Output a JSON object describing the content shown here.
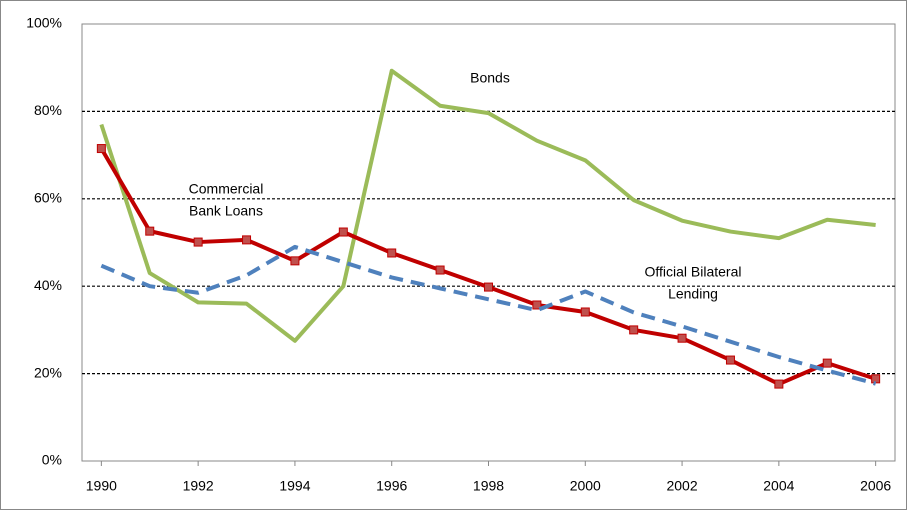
{
  "chart_data": {
    "type": "line",
    "x": [
      1990,
      1991,
      1992,
      1993,
      1994,
      1995,
      1996,
      1997,
      1998,
      1999,
      2000,
      2001,
      2002,
      2003,
      2004,
      2005,
      2006
    ],
    "xlim": [
      1989.6,
      2006.4
    ],
    "xticks": [
      1990,
      1992,
      1994,
      1996,
      1998,
      2000,
      2002,
      2004,
      2006
    ],
    "ylim": [
      0,
      100
    ],
    "yticks": [
      {
        "value": 0,
        "label": "0%"
      },
      {
        "value": 20,
        "label": "20%"
      },
      {
        "value": 40,
        "label": "40%"
      },
      {
        "value": 60,
        "label": "60%"
      },
      {
        "value": 80,
        "label": "80%"
      },
      {
        "value": 100,
        "label": "100%"
      }
    ],
    "grid": true,
    "series": [
      {
        "label": [
          "Bonds"
        ],
        "color": "#9bbb59",
        "style": "solid",
        "markers": false,
        "values": [
          77,
          43,
          36.3,
          36,
          27.5,
          40,
          89.3,
          81.3,
          79.6,
          73.3,
          68.8,
          59.7,
          55,
          52.5,
          51,
          55.2,
          54
        ]
      },
      {
        "label": [
          "Commercial",
          "Bank Loans"
        ],
        "color": "#c00000",
        "style": "solid",
        "markers": true,
        "values": [
          71.5,
          52.6,
          50.1,
          50.6,
          45.8,
          52.4,
          47.6,
          43.7,
          39.8,
          35.7,
          34.1,
          30,
          28.1,
          23.1,
          17.6,
          22.4,
          18.8
        ]
      },
      {
        "label": [
          "Official Bilateral",
          "Lending"
        ],
        "color": "#4f81bd",
        "style": "dashed",
        "markers": false,
        "values": [
          44.7,
          40,
          38.5,
          42.5,
          49,
          45.5,
          42,
          39.5,
          37,
          34.5,
          38.8,
          34,
          30.8,
          27.3,
          23.8,
          20.7,
          17.7
        ]
      }
    ]
  }
}
